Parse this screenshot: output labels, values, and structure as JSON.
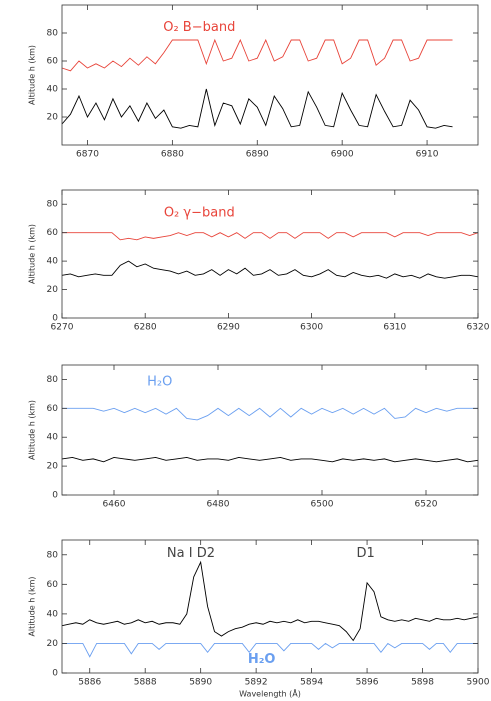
{
  "chart_data": [
    {
      "type": "line",
      "ylabel": "Altitude h (km)",
      "annotations": [
        {
          "text": "O₂ B−band",
          "color": "#e8443a"
        }
      ],
      "xlim": [
        6867,
        6916
      ],
      "xticks": [
        6870,
        6880,
        6890,
        6900,
        6910
      ],
      "ylim": [
        0,
        100
      ],
      "yticks": [
        20,
        40,
        60,
        80
      ],
      "x": [
        6867,
        6868,
        6869,
        6870,
        6871,
        6872,
        6873,
        6874,
        6875,
        6876,
        6877,
        6878,
        6879,
        6880,
        6881,
        6882,
        6883,
        6884,
        6885,
        6886,
        6887,
        6888,
        6889,
        6890,
        6891,
        6892,
        6893,
        6894,
        6895,
        6896,
        6897,
        6898,
        6899,
        6900,
        6901,
        6902,
        6903,
        6904,
        6905,
        6906,
        6907,
        6908,
        6909,
        6910,
        6911,
        6912,
        6913
      ],
      "series": [
        {
          "color": "#e8443a",
          "values": [
            55,
            53,
            60,
            55,
            58,
            55,
            60,
            56,
            62,
            57,
            63,
            58,
            66,
            75,
            75,
            75,
            75,
            58,
            75,
            60,
            62,
            75,
            60,
            62,
            75,
            60,
            63,
            75,
            75,
            60,
            62,
            75,
            75,
            58,
            62,
            75,
            75,
            57,
            62,
            75,
            75,
            60,
            62,
            75,
            75,
            75,
            75
          ]
        },
        {
          "color": "#000000",
          "values": [
            15,
            22,
            35,
            20,
            30,
            18,
            33,
            20,
            28,
            17,
            30,
            19,
            25,
            13,
            12,
            14,
            13,
            40,
            14,
            30,
            28,
            15,
            33,
            27,
            14,
            35,
            26,
            13,
            14,
            38,
            27,
            14,
            13,
            37,
            25,
            14,
            13,
            36,
            24,
            13,
            14,
            32,
            25,
            13,
            12,
            14,
            13
          ]
        }
      ]
    },
    {
      "type": "line",
      "ylabel": "Altitude h (km)",
      "annotations": [
        {
          "text": "O₂ γ−band",
          "color": "#e8443a"
        }
      ],
      "xlim": [
        6270,
        6320
      ],
      "xticks": [
        6270,
        6280,
        6290,
        6300,
        6310,
        6320
      ],
      "ylim": [
        0,
        90
      ],
      "yticks": [
        0,
        20,
        40,
        60,
        80
      ],
      "x": [
        6270,
        6271,
        6272,
        6273,
        6274,
        6275,
        6276,
        6277,
        6278,
        6279,
        6280,
        6281,
        6282,
        6283,
        6284,
        6285,
        6286,
        6287,
        6288,
        6289,
        6290,
        6291,
        6292,
        6293,
        6294,
        6295,
        6296,
        6297,
        6298,
        6299,
        6300,
        6301,
        6302,
        6303,
        6304,
        6305,
        6306,
        6307,
        6308,
        6309,
        6310,
        6311,
        6312,
        6313,
        6314,
        6315,
        6316,
        6317,
        6318,
        6319,
        6320
      ],
      "series": [
        {
          "color": "#e8443a",
          "values": [
            60,
            60,
            60,
            60,
            60,
            60,
            60,
            55,
            56,
            55,
            57,
            56,
            57,
            58,
            60,
            58,
            60,
            60,
            57,
            60,
            57,
            60,
            56,
            60,
            60,
            56,
            60,
            60,
            56,
            60,
            60,
            60,
            56,
            60,
            60,
            57,
            60,
            60,
            60,
            60,
            57,
            60,
            60,
            60,
            58,
            60,
            60,
            60,
            60,
            58,
            60
          ]
        },
        {
          "color": "#000000",
          "values": [
            30,
            31,
            29,
            30,
            31,
            30,
            30,
            37,
            40,
            36,
            38,
            35,
            34,
            33,
            31,
            33,
            30,
            31,
            34,
            30,
            34,
            31,
            35,
            30,
            31,
            34,
            30,
            31,
            34,
            30,
            29,
            31,
            34,
            30,
            29,
            32,
            30,
            29,
            30,
            28,
            31,
            29,
            30,
            28,
            31,
            29,
            28,
            29,
            30,
            30,
            29
          ]
        }
      ]
    },
    {
      "type": "line",
      "ylabel": "Altitude h (km)",
      "annotations": [
        {
          "text": "H₂O",
          "color": "#6a9ff0"
        }
      ],
      "xlim": [
        6450,
        6530
      ],
      "xticks": [
        6460,
        6480,
        6500,
        6520
      ],
      "ylim": [
        0,
        90
      ],
      "yticks": [
        0,
        20,
        40,
        60,
        80
      ],
      "x": [
        6450,
        6452,
        6454,
        6456,
        6458,
        6460,
        6462,
        6464,
        6466,
        6468,
        6470,
        6472,
        6474,
        6476,
        6478,
        6480,
        6482,
        6484,
        6486,
        6488,
        6490,
        6492,
        6494,
        6496,
        6498,
        6500,
        6502,
        6504,
        6506,
        6508,
        6510,
        6512,
        6514,
        6516,
        6518,
        6520,
        6522,
        6524,
        6526,
        6528,
        6530
      ],
      "series": [
        {
          "color": "#6a9ff0",
          "values": [
            60,
            60,
            60,
            60,
            58,
            60,
            57,
            60,
            57,
            60,
            56,
            60,
            53,
            52,
            55,
            60,
            55,
            60,
            55,
            60,
            54,
            60,
            54,
            60,
            56,
            60,
            57,
            60,
            56,
            60,
            56,
            60,
            53,
            54,
            60,
            57,
            60,
            58,
            60,
            60,
            60
          ]
        },
        {
          "color": "#000000",
          "values": [
            25,
            26,
            24,
            25,
            23,
            26,
            25,
            24,
            25,
            26,
            24,
            25,
            26,
            24,
            25,
            25,
            24,
            26,
            25,
            24,
            25,
            26,
            24,
            25,
            25,
            24,
            23,
            25,
            24,
            25,
            24,
            25,
            23,
            24,
            25,
            24,
            23,
            24,
            25,
            23,
            24
          ]
        }
      ]
    },
    {
      "type": "line",
      "ylabel": "Altitude h (km)",
      "xlabel": "Wavelength (Å)",
      "annotations": [
        {
          "text": "Na I D2",
          "color": "#444444"
        },
        {
          "text": "D1",
          "color": "#444444"
        },
        {
          "text": "H₂O",
          "color": "#6a9ff0"
        }
      ],
      "xlim": [
        5885,
        5900
      ],
      "xticks": [
        5886,
        5888,
        5890,
        5892,
        5894,
        5896,
        5898,
        5900
      ],
      "ylim": [
        0,
        90
      ],
      "yticks": [
        0,
        20,
        40,
        60,
        80
      ],
      "x": [
        5885,
        5885.25,
        5885.5,
        5885.75,
        5886,
        5886.25,
        5886.5,
        5886.75,
        5887,
        5887.25,
        5887.5,
        5887.75,
        5888,
        5888.25,
        5888.5,
        5888.75,
        5889,
        5889.25,
        5889.5,
        5889.75,
        5890,
        5890.25,
        5890.5,
        5890.75,
        5891,
        5891.25,
        5891.5,
        5891.75,
        5892,
        5892.25,
        5892.5,
        5892.75,
        5893,
        5893.25,
        5893.5,
        5893.75,
        5894,
        5894.25,
        5894.5,
        5894.75,
        5895,
        5895.25,
        5895.5,
        5895.75,
        5896,
        5896.25,
        5896.5,
        5896.75,
        5897,
        5897.25,
        5897.5,
        5897.75,
        5898,
        5898.25,
        5898.5,
        5898.75,
        5899,
        5899.25,
        5899.5,
        5899.75,
        5900
      ],
      "series": [
        {
          "color": "#6a9ff0",
          "values": [
            20,
            20,
            20,
            20,
            11,
            20,
            20,
            20,
            20,
            20,
            13,
            20,
            20,
            20,
            16,
            20,
            20,
            20,
            20,
            20,
            20,
            14,
            20,
            20,
            20,
            20,
            20,
            14,
            20,
            20,
            20,
            20,
            15,
            20,
            20,
            20,
            20,
            16,
            20,
            17,
            20,
            20,
            20,
            20,
            20,
            20,
            14,
            20,
            17,
            20,
            20,
            20,
            20,
            16,
            20,
            20,
            14,
            20,
            20,
            20,
            20
          ]
        },
        {
          "color": "#000000",
          "values": [
            32,
            33,
            34,
            33,
            36,
            34,
            33,
            34,
            35,
            33,
            34,
            36,
            34,
            35,
            33,
            34,
            34,
            33,
            40,
            65,
            75,
            45,
            28,
            25,
            28,
            30,
            31,
            33,
            34,
            33,
            35,
            34,
            35,
            34,
            36,
            34,
            35,
            35,
            34,
            33,
            32,
            28,
            22,
            30,
            61,
            55,
            38,
            36,
            35,
            36,
            35,
            37,
            36,
            35,
            37,
            36,
            36,
            37,
            36,
            37,
            38
          ]
        }
      ]
    }
  ]
}
